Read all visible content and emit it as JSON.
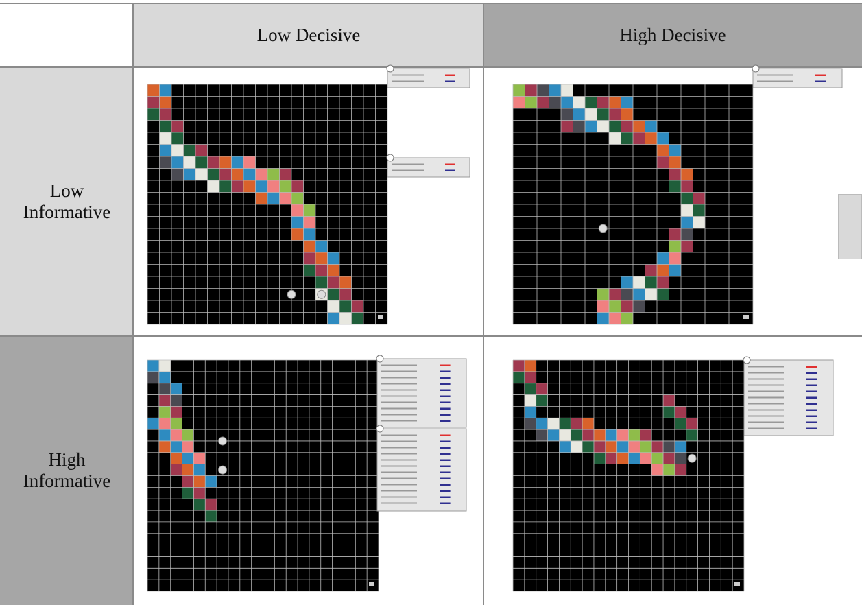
{
  "table": {
    "columns": [
      "Low Decisive",
      "High Decisive"
    ],
    "rows": [
      "Low Informative",
      "High Informative"
    ]
  }
}
